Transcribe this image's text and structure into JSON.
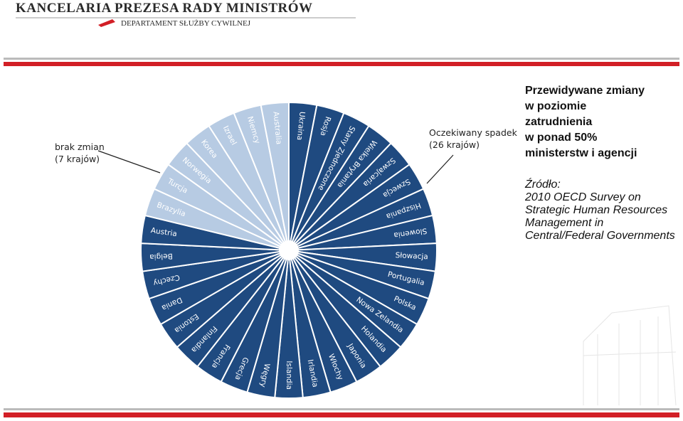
{
  "header": {
    "title": "KANCELARIA PREZESA RADY MINISTRÓW",
    "subtitle": "DEPARTAMENT SŁUŻBY CYWILNEJ"
  },
  "side_text": {
    "title_lines": [
      "Przewidywane zmiany",
      "w poziomie",
      "zatrudnienia",
      "w ponad 50%",
      "ministerstw i agencji"
    ],
    "source_lines": [
      "Źródło:",
      "2010 OECD Survey on",
      "Strategic Human Resources",
      "Management in",
      "Central/Federal Governments"
    ]
  },
  "groups": [
    {
      "label_lines": [
        "Oczekiwany spadek",
        "(26 krajów)"
      ],
      "countries": [
        "Ukraina",
        "Rosja",
        "Stany Zjednoczone",
        "Wielka Brytania",
        "Szwajcaria",
        "Szwecja",
        "Hiszpania",
        "Slowenia",
        "Słowacja",
        "Portugalia",
        "Polska",
        "Nowa Zelandia",
        "Holandia",
        "Japonia",
        "Włochy",
        "Irlandia",
        "Islandia",
        "Węgry",
        "Grecja",
        "Francja",
        "Finlandia",
        "Estonia",
        "Dania",
        "Czechy",
        "Belgia",
        "Austria"
      ]
    },
    {
      "label_lines": [
        "brak zmian",
        "(7 krajów)"
      ],
      "countries": [
        "Brazylia",
        "Turcja",
        "Norwegia",
        "Korea",
        "Izrael",
        "Niemcy",
        "Australia"
      ]
    }
  ]
}
